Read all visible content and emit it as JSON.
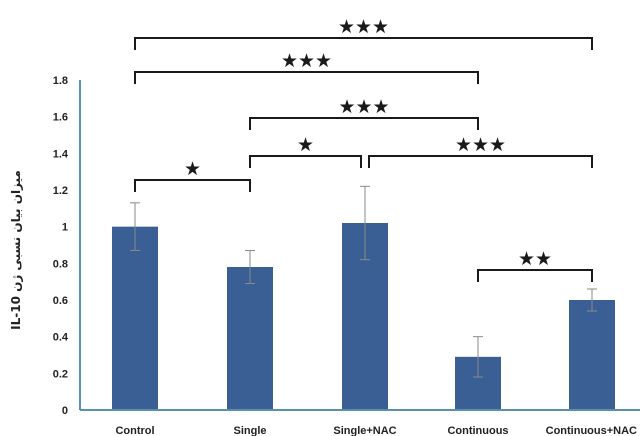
{
  "chart_data": {
    "type": "bar",
    "ylabel": "IL-10 میزان بیان نسبی ژن",
    "ylim": [
      0,
      1.8
    ],
    "yticks": [
      "0",
      "0.2",
      "0.4",
      "0.6",
      "0.8",
      "1",
      "1.2",
      "1.4",
      "1.6",
      "1.8"
    ],
    "categories": [
      "Control",
      "Single",
      "Single+NAC",
      "Continuous",
      "Continuous+NAC"
    ],
    "values": [
      1.0,
      0.78,
      1.02,
      0.29,
      0.6
    ],
    "errors": [
      0.13,
      0.09,
      0.2,
      0.11,
      0.06
    ],
    "bar_color": "#3a5f94",
    "significance": [
      {
        "from": 0,
        "to": 1,
        "label": "★"
      },
      {
        "from": 3,
        "to": 4,
        "label": "★★"
      },
      {
        "from": 1,
        "to": 2,
        "label": "★"
      },
      {
        "from": 2,
        "to": 4,
        "label": "★★★"
      },
      {
        "from": 1,
        "to": 3,
        "label": "★★★"
      },
      {
        "from": 0,
        "to": 3,
        "label": "★★★"
      },
      {
        "from": 0,
        "to": 4,
        "label": "★★★"
      }
    ],
    "grid": false,
    "legend": "none"
  }
}
